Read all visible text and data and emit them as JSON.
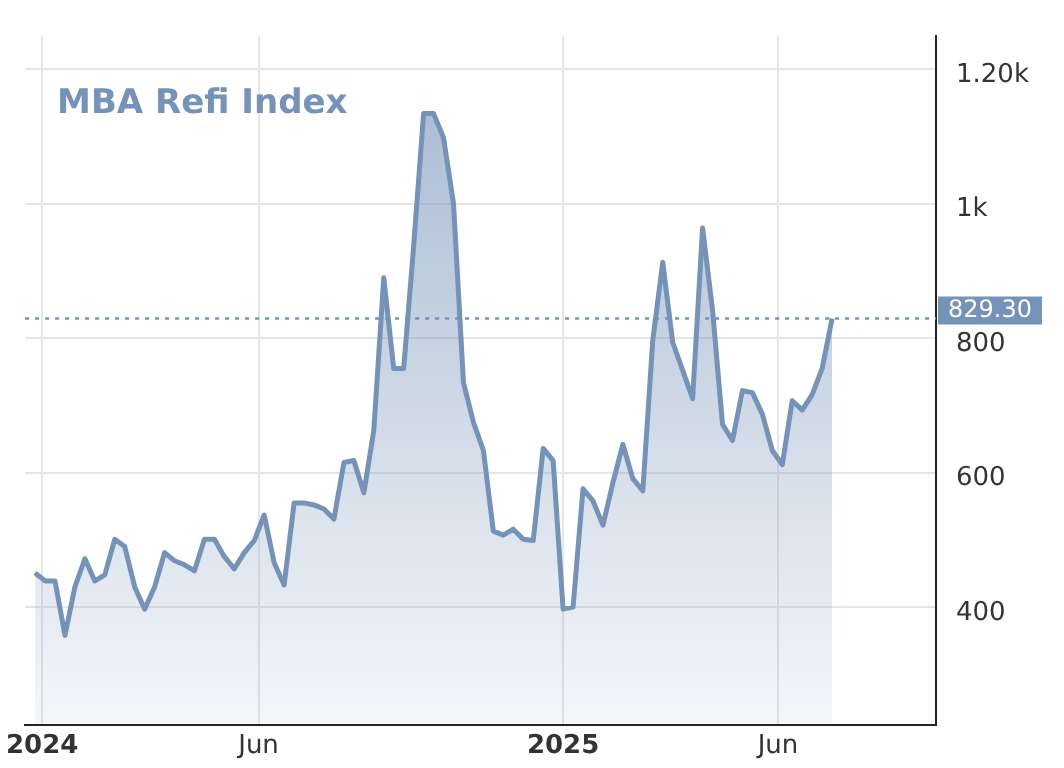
{
  "chart_data": {
    "type": "area",
    "title": "MBA Refi Index",
    "x": [
      "2023-12-27",
      "2024-01-03",
      "2024-01-10",
      "2024-01-17",
      "2024-01-24",
      "2024-01-31",
      "2024-02-07",
      "2024-02-14",
      "2024-02-21",
      "2024-02-28",
      "2024-03-06",
      "2024-03-13",
      "2024-03-20",
      "2024-03-27",
      "2024-04-03",
      "2024-04-10",
      "2024-04-17",
      "2024-04-24",
      "2024-05-01",
      "2024-05-08",
      "2024-05-15",
      "2024-05-22",
      "2024-05-29",
      "2024-06-05",
      "2024-06-12",
      "2024-06-19",
      "2024-06-26",
      "2024-07-03",
      "2024-07-10",
      "2024-07-17",
      "2024-07-24",
      "2024-07-31",
      "2024-08-07",
      "2024-08-14",
      "2024-08-21",
      "2024-08-28",
      "2024-09-04",
      "2024-09-11",
      "2024-09-18",
      "2024-09-25",
      "2024-10-02",
      "2024-10-09",
      "2024-10-16",
      "2024-10-23",
      "2024-10-30",
      "2024-11-06",
      "2024-11-13",
      "2024-11-20",
      "2024-11-27",
      "2024-12-04",
      "2024-12-11",
      "2024-12-18",
      "2024-12-25",
      "2025-01-01",
      "2025-01-08",
      "2025-01-15",
      "2025-01-22",
      "2025-01-29",
      "2025-02-05",
      "2025-02-12",
      "2025-02-19",
      "2025-02-26",
      "2025-03-05",
      "2025-03-12",
      "2025-03-19",
      "2025-03-26",
      "2025-04-02",
      "2025-04-09",
      "2025-04-16",
      "2025-04-23",
      "2025-04-30",
      "2025-05-07",
      "2025-05-14",
      "2025-05-21",
      "2025-05-28",
      "2025-06-04",
      "2025-06-11",
      "2025-06-18",
      "2025-06-25",
      "2025-07-02",
      "2025-07-09"
    ],
    "series": [
      {
        "color": "#7592b8",
        "values": [
          451,
          439,
          439,
          358,
          430,
          472,
          439,
          448,
          501,
          490,
          430,
          397,
          430,
          481,
          469,
          463,
          454,
          501,
          501,
          475,
          457,
          481,
          499,
          537,
          466,
          433,
          555,
          555,
          552,
          546,
          531,
          615,
          618,
          570,
          663,
          890,
          755,
          755,
          937,
          1134,
          1134,
          1098,
          1000,
          734,
          675,
          633,
          513,
          507,
          516,
          501,
          499,
          636,
          618,
          397,
          400,
          576,
          558,
          522,
          585,
          642,
          591,
          573,
          797,
          913,
          794,
          752,
          710,
          964,
          842,
          672,
          648,
          722,
          719,
          687,
          633,
          612,
          707,
          693,
          716,
          755,
          829.3
        ]
      }
    ],
    "xlim": [
      "2023-12-20",
      "2025-09-20"
    ],
    "xticks": [
      {
        "value": "2024-01-01",
        "label": "2024"
      },
      {
        "value": "2024-06-01",
        "label": "Jun"
      },
      {
        "value": "2025-01-01",
        "label": "2025"
      },
      {
        "value": "2025-06-01",
        "label": "Jun"
      }
    ],
    "ylim": [
      225,
      1250
    ],
    "yticks": [
      400,
      600,
      800,
      {
        "value": 1000,
        "label": "1k"
      },
      {
        "value": 1200,
        "label": "1.20k"
      }
    ],
    "ref_lines": [
      {
        "axis": "y",
        "value": 829.3,
        "label": "829.30",
        "color": "#7592b8",
        "line_style": "dotted"
      }
    ],
    "grid": true,
    "legend": false,
    "marker": "none",
    "line_style": "solid"
  }
}
